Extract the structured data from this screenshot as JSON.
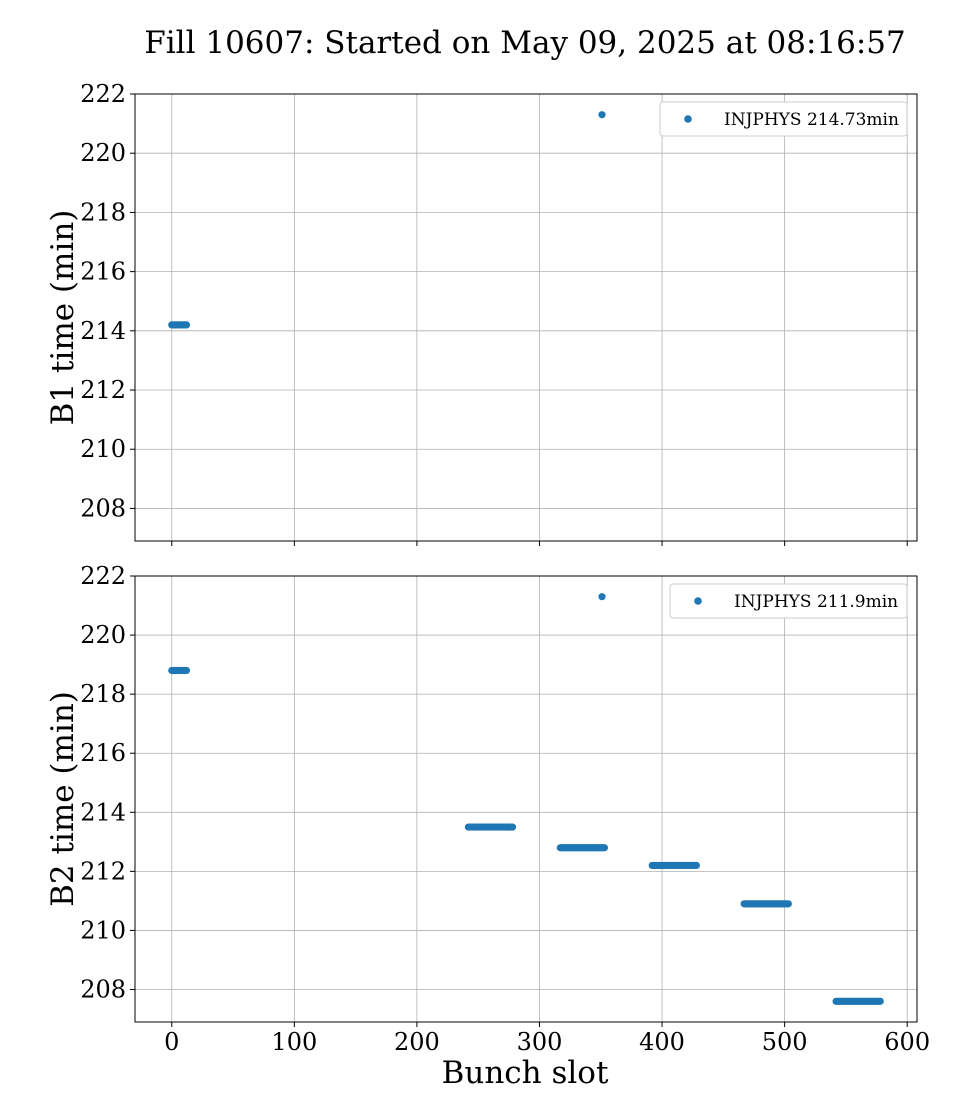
{
  "chart_data": {
    "type": "scatter",
    "title": "Fill 10607: Started on May 09, 2025 at 08:16:57",
    "marker_color": "#1f77b4",
    "grid": true,
    "legend_placement": "top-right",
    "shared_x": {
      "label": "Bunch slot",
      "lim": [
        -30,
        608
      ],
      "ticks": [
        0,
        100,
        200,
        300,
        400,
        500,
        600
      ],
      "tick_labels": [
        "0",
        "100",
        "200",
        "300",
        "400",
        "500",
        "600"
      ]
    },
    "subplots": [
      {
        "ylabel": "B1 time (min)",
        "ylim": [
          206.9,
          222.0
        ],
        "yticks": [
          208,
          210,
          212,
          214,
          216,
          218,
          220,
          222
        ],
        "ytick_labels": [
          "208",
          "210",
          "212",
          "214",
          "216",
          "218",
          "220",
          "222"
        ],
        "series": [
          {
            "name": "INJPHYS 214.73min",
            "groups": [
              {
                "x_start": 0,
                "x_end": 12,
                "count": 12,
                "y": 214.2
              },
              {
                "x_start": 351,
                "x_end": 351,
                "count": 1,
                "y": 221.3
              }
            ]
          }
        ]
      },
      {
        "ylabel": "B2 time (min)",
        "ylim": [
          206.9,
          222.0
        ],
        "yticks": [
          208,
          210,
          212,
          214,
          216,
          218,
          220,
          222
        ],
        "ytick_labels": [
          "208",
          "210",
          "212",
          "214",
          "216",
          "218",
          "220",
          "222"
        ],
        "series": [
          {
            "name": "INJPHYS 211.9min",
            "groups": [
              {
                "x_start": 0,
                "x_end": 12,
                "count": 12,
                "y": 218.8
              },
              {
                "x_start": 242,
                "x_end": 278,
                "count": 36,
                "y": 213.5
              },
              {
                "x_start": 317,
                "x_end": 353,
                "count": 36,
                "y": 212.8
              },
              {
                "x_start": 392,
                "x_end": 428,
                "count": 36,
                "y": 212.2
              },
              {
                "x_start": 467,
                "x_end": 503,
                "count": 36,
                "y": 210.9
              },
              {
                "x_start": 542,
                "x_end": 578,
                "count": 36,
                "y": 207.6
              },
              {
                "x_start": 351,
                "x_end": 351,
                "count": 1,
                "y": 221.3
              }
            ]
          }
        ]
      }
    ]
  }
}
